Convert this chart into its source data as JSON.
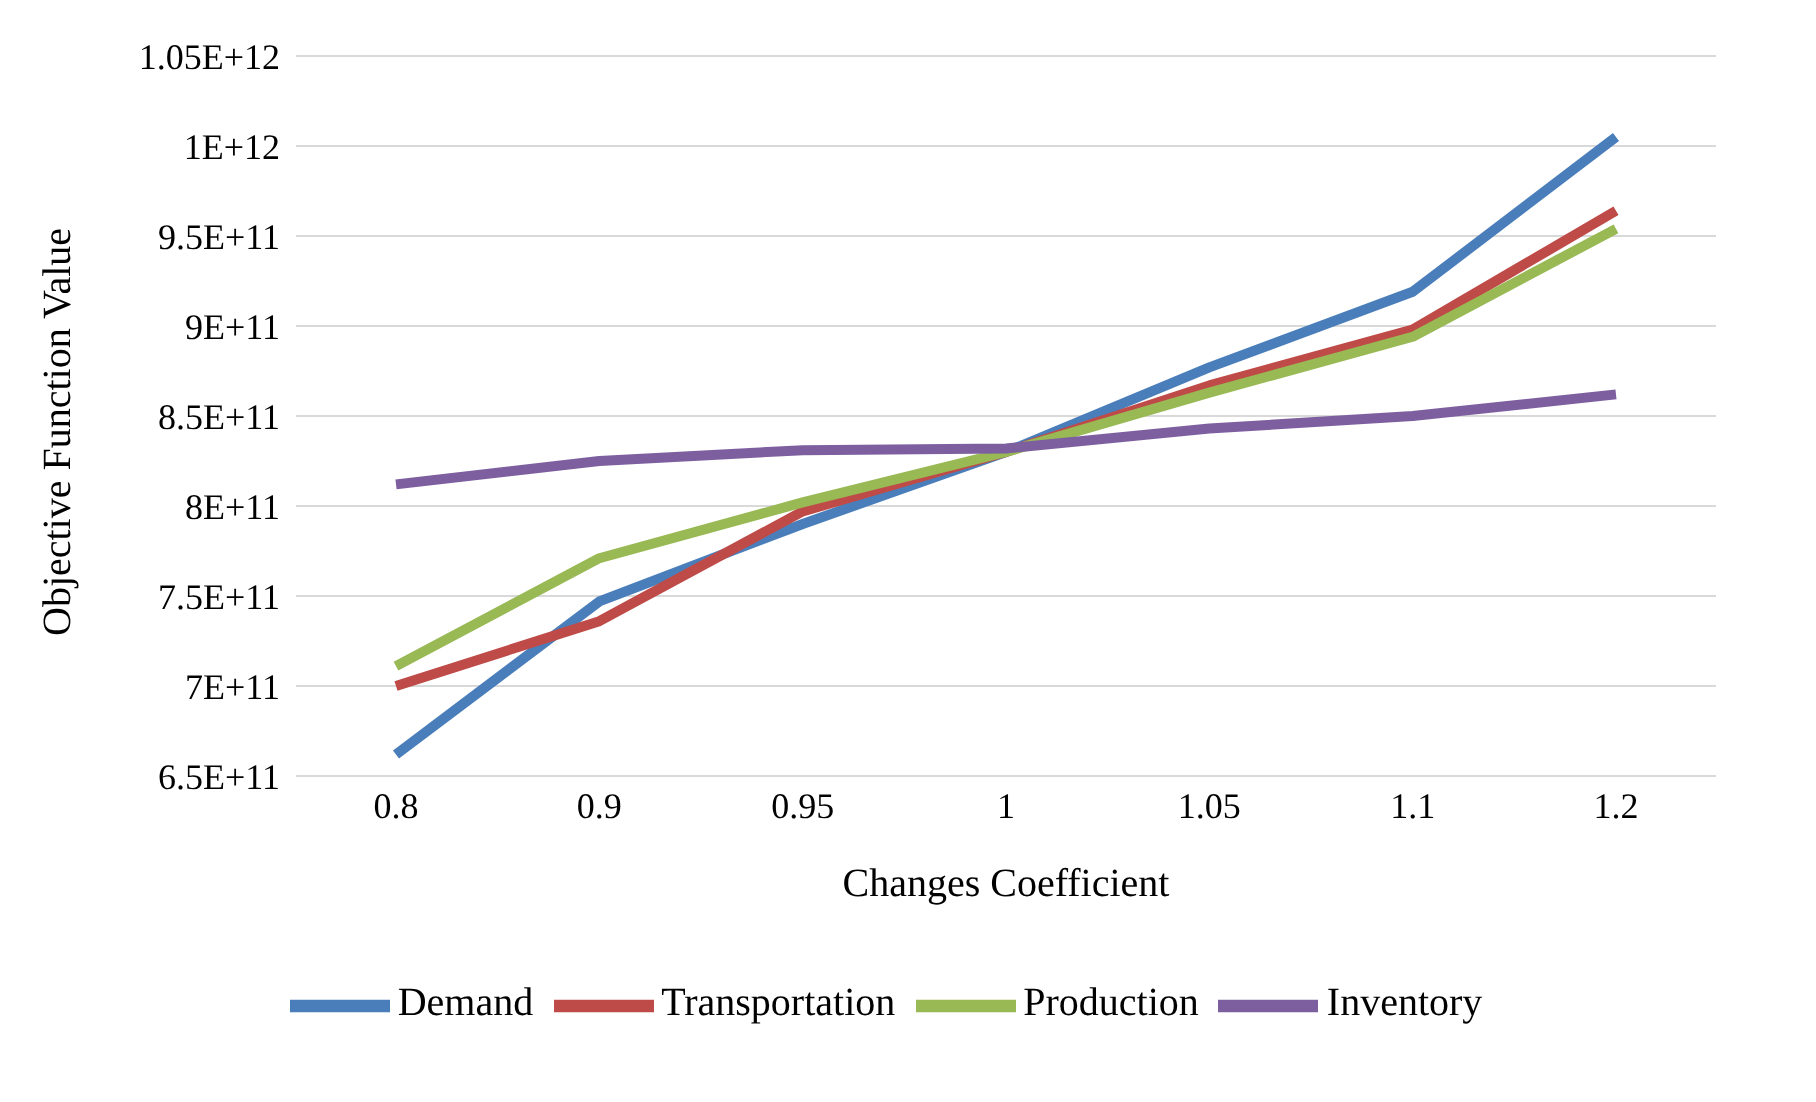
{
  "chart_data": {
    "type": "line",
    "xlabel": "Changes Coefficient",
    "ylabel": "Objective Function Value",
    "categories": [
      "0.8",
      "0.9",
      "0.95",
      "1",
      "1.05",
      "1.1",
      "1.2"
    ],
    "series": [
      {
        "name": "Demand",
        "color": "#4a7ebb",
        "values": [
          662000000000,
          747000000000,
          790000000000,
          830000000000,
          877000000000,
          919000000000,
          1005000000000
        ]
      },
      {
        "name": "Transportation",
        "color": "#be4b48",
        "values": [
          700000000000,
          736000000000,
          797000000000,
          830000000000,
          867000000000,
          898000000000,
          964000000000
        ]
      },
      {
        "name": "Production",
        "color": "#98b954",
        "values": [
          711000000000,
          771000000000,
          802000000000,
          830000000000,
          863000000000,
          894000000000,
          954000000000
        ]
      },
      {
        "name": "Inventory",
        "color": "#7d5fa0",
        "values": [
          812000000000,
          825000000000,
          831000000000,
          832000000000,
          843000000000,
          850000000000,
          862000000000
        ]
      }
    ],
    "ylim": [
      650000000000,
      1050000000000
    ],
    "yticks": [
      {
        "value": 650000000000,
        "label": "6.5E+11"
      },
      {
        "value": 700000000000,
        "label": "7E+11"
      },
      {
        "value": 750000000000,
        "label": "7.5E+11"
      },
      {
        "value": 800000000000,
        "label": "8E+11"
      },
      {
        "value": 850000000000,
        "label": "8.5E+11"
      },
      {
        "value": 900000000000,
        "label": "9E+11"
      },
      {
        "value": 950000000000,
        "label": "9.5E+11"
      },
      {
        "value": 1000000000000,
        "label": "1E+12"
      },
      {
        "value": 1050000000000,
        "label": "1.05E+12"
      }
    ],
    "grid": "y",
    "legend": "bottom",
    "marker": "none",
    "line_style": "solid"
  }
}
